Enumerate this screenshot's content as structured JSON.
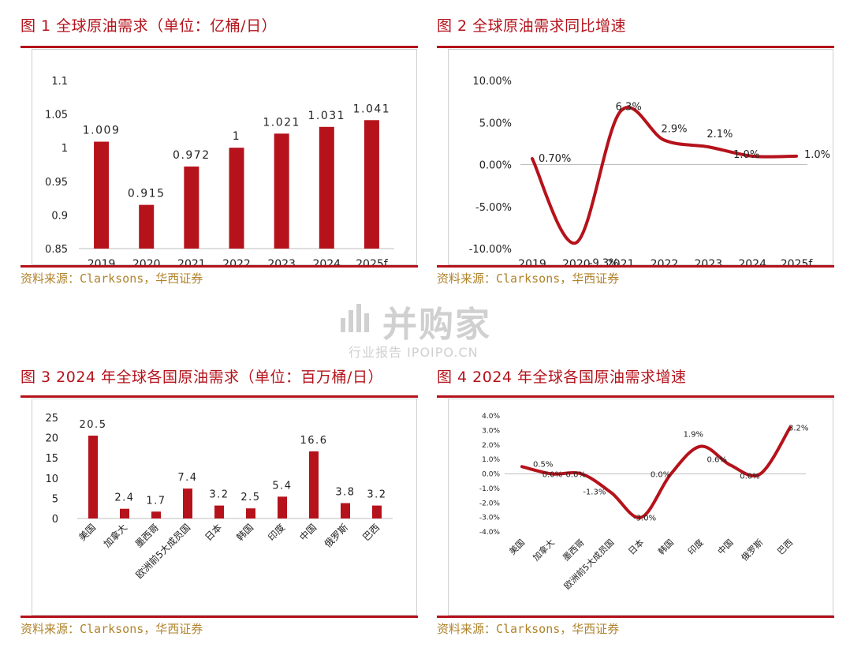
{
  "panels": [
    {
      "title": "图 1 全球原油需求（单位：亿桶/日）",
      "source": "资料来源：Clarksons，华西证券"
    },
    {
      "title": "图 2 全球原油需求同比增速",
      "source": "资料来源：Clarksons，华西证券"
    },
    {
      "title": "图 3 2024 年全球各国原油需求（单位：百万桶/日）",
      "source": "资料来源：Clarksons，华西证券"
    },
    {
      "title": "图 4 2024 年全球各国原油需求增速",
      "source": "资料来源：Clarksons，华西证券"
    }
  ],
  "watermark": {
    "main": "并购家",
    "sub": "行业报告 IPOIPO.CN"
  },
  "colors": {
    "accent": "#b5121b",
    "source_text": "#b0832b"
  },
  "chart_data": [
    {
      "type": "bar",
      "categories": [
        "2019",
        "2020",
        "2021",
        "2022",
        "2023",
        "2024",
        "2025f"
      ],
      "values": [
        1.009,
        0.915,
        0.972,
        1,
        1.021,
        1.031,
        1.041
      ],
      "labels": [
        "1.009",
        "0.915",
        "0.972",
        "1",
        "1.021",
        "1.031",
        "1.041"
      ],
      "yticks": [
        "0.85",
        "0.9",
        "0.95",
        "1",
        "1.05",
        "1.1"
      ],
      "ylim": [
        0.85,
        1.1
      ],
      "grid": false
    },
    {
      "type": "line",
      "categories": [
        "2019",
        "2020",
        "2021",
        "2022",
        "2023",
        "2024",
        "2025f"
      ],
      "values": [
        0.7,
        -9.3,
        6.3,
        2.9,
        2.1,
        1.0,
        1.0
      ],
      "labels": [
        "0.70%",
        "-9.3%",
        "6.3%",
        "2.9%",
        "2.1%",
        "1.0%",
        "1.0%"
      ],
      "yticks": [
        "-10.00%",
        "-5.00%",
        "0.00%",
        "5.00%",
        "10.00%"
      ],
      "ylim": [
        -10,
        10
      ],
      "grid": false
    },
    {
      "type": "bar",
      "categories": [
        "美国",
        "加拿大",
        "墨西哥",
        "欧洲前5大成员国",
        "日本",
        "韩国",
        "印度",
        "中国",
        "俄罗斯",
        "巴西"
      ],
      "values": [
        20.5,
        2.4,
        1.7,
        7.4,
        3.2,
        2.5,
        5.4,
        16.6,
        3.8,
        3.2
      ],
      "labels": [
        "20.5",
        "2.4",
        "1.7",
        "7.4",
        "3.2",
        "2.5",
        "5.4",
        "16.6",
        "3.8",
        "3.2"
      ],
      "yticks": [
        "0",
        "5",
        "10",
        "15",
        "20",
        "25"
      ],
      "ylim": [
        0,
        25
      ],
      "grid": false
    },
    {
      "type": "line",
      "categories": [
        "美国",
        "加拿大",
        "墨西哥",
        "欧洲前5大成员国",
        "日本",
        "韩国",
        "印度",
        "中国",
        "俄罗斯",
        "巴西"
      ],
      "values": [
        0.5,
        0.0,
        0.0,
        -1.3,
        -3.0,
        0.0,
        1.9,
        0.6,
        0.0,
        3.2
      ],
      "labels": [
        "0.5%",
        "0.0%",
        "0.0%",
        "-1.3%",
        "-3.0%",
        "0.0%",
        "1.9%",
        "0.6%",
        "0.0%",
        "3.2%"
      ],
      "yticks": [
        "-4.0%",
        "-3.0%",
        "-2.0%",
        "-1.0%",
        "0.0%",
        "1.0%",
        "2.0%",
        "3.0%",
        "4.0%"
      ],
      "ylim": [
        -4,
        4
      ],
      "grid": false
    }
  ]
}
